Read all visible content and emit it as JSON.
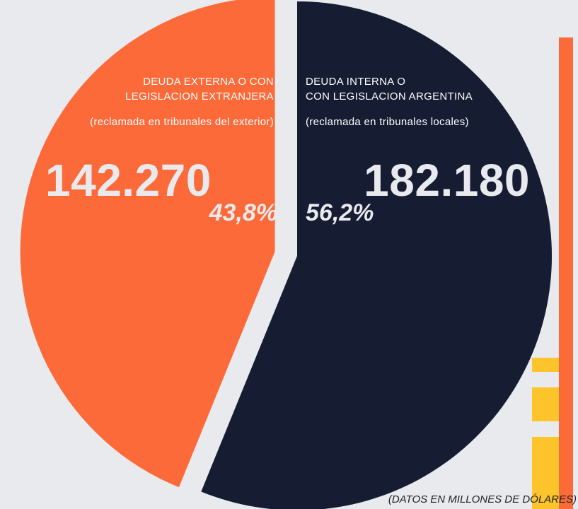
{
  "colors": {
    "background": "#e8eaee",
    "external": "#fd6a39",
    "internal": "#161c32",
    "accent_bar": "#fd6a39",
    "accent_blocks": "#fdc52b"
  },
  "chart_data": {
    "type": "pie",
    "title": "",
    "unit_note": "(DATOS EN MILLONES DE DÓLARES)",
    "slices": [
      {
        "key": "externa",
        "label_line1": "DEUDA EXTERNA O CON",
        "label_line2": "LEGISLACION EXTRANJERA",
        "sublabel": "(reclamada en tribunales del exterior)",
        "value": 142270,
        "value_label": "142.270",
        "percent": 43.8,
        "percent_label": "43,8%",
        "color": "#fd6a39",
        "exploded": true
      },
      {
        "key": "interna",
        "label_line1": "DEUDA INTERNA O",
        "label_line2": "CON LEGISLACION ARGENTINA",
        "sublabel": "(reclamada en tribunales locales)",
        "value": 182180,
        "value_label": "182.180",
        "percent": 56.2,
        "percent_label": "56,2%",
        "color": "#161c32",
        "exploded": false
      }
    ]
  }
}
